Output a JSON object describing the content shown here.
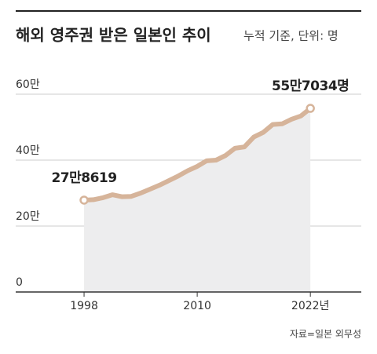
{
  "chart_data": {
    "type": "line",
    "title": "해외 영주권 받은 일본인 추이",
    "subtitle": "누적 기준, 단위: 명",
    "source": "자료=일본 외무성",
    "x": [
      1998,
      1999,
      2000,
      2001,
      2002,
      2003,
      2004,
      2005,
      2006,
      2007,
      2008,
      2009,
      2010,
      2011,
      2012,
      2013,
      2014,
      2015,
      2016,
      2017,
      2018,
      2019,
      2020,
      2021,
      2022
    ],
    "series": [
      {
        "name": "해외 영주권 받은 일본인",
        "color": "#d6b49a",
        "values": [
          278619,
          280000,
          286000,
          295000,
          289000,
          290000,
          300000,
          312000,
          324000,
          338000,
          352000,
          368000,
          381000,
          398000,
          400000,
          414000,
          436000,
          440000,
          470000,
          484000,
          508000,
          510000,
          524000,
          534000,
          557034
        ],
        "value_labels": [
          "27만8619",
          null,
          null,
          null,
          null,
          null,
          null,
          null,
          null,
          null,
          null,
          null,
          null,
          null,
          null,
          null,
          null,
          null,
          null,
          null,
          null,
          null,
          null,
          null,
          "55만7034명"
        ]
      }
    ],
    "xlim": [
      1990.75,
      2027.4
    ],
    "ylim": [
      0,
      600000
    ],
    "xticks": [
      1998,
      2010,
      {
        "value": 2022,
        "label": "2022년"
      }
    ],
    "yticks": [
      0,
      {
        "value": 200000,
        "label": "20만"
      },
      {
        "value": 400000,
        "label": "40만"
      },
      {
        "value": 600000,
        "label": "60만"
      }
    ],
    "grid": true,
    "area_color": "#ededee"
  }
}
